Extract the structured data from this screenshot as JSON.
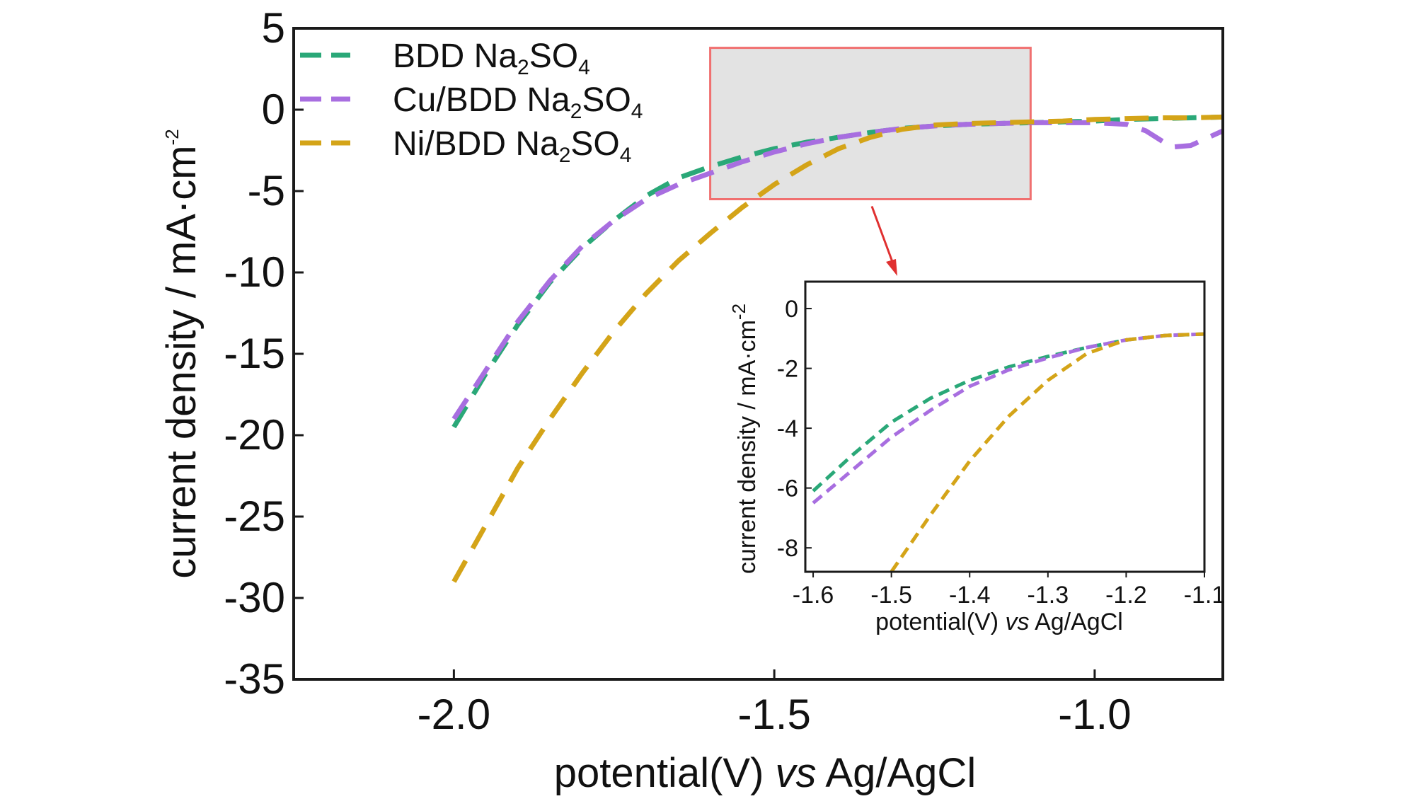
{
  "chart_data": {
    "type": "line",
    "xlabel": {
      "prefix": "potential(V) ",
      "italic": "vs",
      "suffix": " Ag/AgCl"
    },
    "ylabel": {
      "base": "current density / mA·cm",
      "superscript": "-2"
    },
    "xlim": [
      -2.25,
      -0.8
    ],
    "ylim": [
      -35,
      5
    ],
    "xticks": [
      -2.0,
      -1.5,
      -1.0
    ],
    "xtick_labels": [
      "-2.0",
      "-1.5",
      "-1.0"
    ],
    "yticks": [
      5,
      0,
      -5,
      -10,
      -15,
      -20,
      -25,
      -30,
      -35
    ],
    "ytick_labels": [
      "5",
      "0",
      "-5",
      "-10",
      "-15",
      "-20",
      "-25",
      "-30",
      "-35"
    ],
    "grid": false,
    "legend_position": "top-left",
    "series": [
      {
        "name": "BDD Na2SO4",
        "label": {
          "pre": "BDD Na",
          "sub1": "2",
          "mid": "SO",
          "sub2": "4"
        },
        "color": "#2aa878",
        "x": [
          -2.0,
          -1.95,
          -1.9,
          -1.85,
          -1.8,
          -1.75,
          -1.7,
          -1.65,
          -1.6,
          -1.55,
          -1.5,
          -1.45,
          -1.4,
          -1.35,
          -1.3,
          -1.25,
          -1.2,
          -1.15,
          -1.1,
          -1.05,
          -1.0,
          -0.95,
          -0.9,
          -0.85,
          -0.8
        ],
        "y": [
          -19.5,
          -16.2,
          -13.2,
          -10.6,
          -8.5,
          -6.8,
          -5.3,
          -4.2,
          -3.5,
          -2.9,
          -2.4,
          -2.0,
          -1.7,
          -1.4,
          -1.15,
          -1.0,
          -0.9,
          -0.85,
          -0.8,
          -0.75,
          -0.7,
          -0.6,
          -0.55,
          -0.5,
          -0.45
        ]
      },
      {
        "name": "Cu/BDD Na2SO4",
        "label": {
          "pre": "Cu/BDD Na",
          "sub1": "2",
          "mid": "SO",
          "sub2": "4"
        },
        "color": "#a86ee0",
        "x": [
          -2.0,
          -1.95,
          -1.9,
          -1.85,
          -1.8,
          -1.75,
          -1.7,
          -1.65,
          -1.6,
          -1.55,
          -1.5,
          -1.45,
          -1.4,
          -1.35,
          -1.3,
          -1.25,
          -1.2,
          -1.15,
          -1.1,
          -1.05,
          -1.0,
          -0.95,
          -0.92,
          -0.88,
          -0.85,
          -0.8
        ],
        "y": [
          -19.0,
          -16.0,
          -13.0,
          -10.5,
          -8.4,
          -6.8,
          -5.5,
          -4.6,
          -3.9,
          -3.2,
          -2.6,
          -2.1,
          -1.7,
          -1.4,
          -1.15,
          -1.0,
          -0.9,
          -0.85,
          -0.8,
          -0.8,
          -0.8,
          -0.9,
          -1.3,
          -2.3,
          -2.2,
          -1.3
        ]
      },
      {
        "name": "Ni/BDD Na2SO4",
        "label": {
          "pre": "Ni/BDD Na",
          "sub1": "2",
          "mid": "SO",
          "sub2": "4"
        },
        "color": "#d4a418",
        "x": [
          -2.0,
          -1.95,
          -1.9,
          -1.85,
          -1.8,
          -1.75,
          -1.7,
          -1.65,
          -1.6,
          -1.55,
          -1.5,
          -1.45,
          -1.4,
          -1.35,
          -1.3,
          -1.25,
          -1.2,
          -1.15,
          -1.1,
          -1.05,
          -1.0,
          -0.95,
          -0.9,
          -0.85,
          -0.8
        ],
        "y": [
          -29.0,
          -25.5,
          -22.0,
          -19.0,
          -16.2,
          -13.6,
          -11.3,
          -9.3,
          -7.6,
          -6.0,
          -4.6,
          -3.4,
          -2.4,
          -1.7,
          -1.2,
          -0.95,
          -0.85,
          -0.8,
          -0.75,
          -0.7,
          -0.6,
          -0.55,
          -0.5,
          -0.5,
          -0.45
        ]
      }
    ],
    "highlight_box": {
      "x": [
        -1.6,
        -1.1
      ],
      "y": [
        -5.5,
        3.8
      ],
      "fill": "#e3e3e3",
      "edge": "#f07070"
    },
    "arrow_color": "#e03030",
    "inset": {
      "xlim": [
        -1.61,
        -1.1
      ],
      "ylim": [
        -8.8,
        0.9
      ],
      "xticks": [
        -1.6,
        -1.5,
        -1.4,
        -1.3,
        -1.2,
        -1.1
      ],
      "xtick_labels": [
        "-1.6",
        "-1.5",
        "-1.4",
        "-1.3",
        "-1.2",
        "-1.1"
      ],
      "yticks": [
        0,
        -2,
        -4,
        -6,
        -8
      ],
      "ytick_labels": [
        "0",
        "-2",
        "-4",
        "-6",
        "-8"
      ],
      "xlabel": {
        "prefix": "potential(V) ",
        "italic": "vs",
        "suffix": " Ag/AgCl"
      },
      "ylabel": {
        "base": "current density / mA·cm",
        "superscript": "-2"
      },
      "series": [
        {
          "name": "BDD Na2SO4",
          "x": [
            -1.6,
            -1.55,
            -1.5,
            -1.45,
            -1.4,
            -1.35,
            -1.3,
            -1.25,
            -1.2,
            -1.15,
            -1.1
          ],
          "y": [
            -6.1,
            -4.9,
            -3.8,
            -3.0,
            -2.4,
            -1.95,
            -1.6,
            -1.3,
            -1.05,
            -0.9,
            -0.85
          ]
        },
        {
          "name": "Cu/BDD Na2SO4",
          "x": [
            -1.6,
            -1.55,
            -1.5,
            -1.45,
            -1.4,
            -1.35,
            -1.3,
            -1.25,
            -1.2,
            -1.15,
            -1.1
          ],
          "y": [
            -6.5,
            -5.4,
            -4.3,
            -3.4,
            -2.6,
            -2.05,
            -1.65,
            -1.3,
            -1.05,
            -0.9,
            -0.85
          ]
        },
        {
          "name": "Ni/BDD Na2SO4",
          "x": [
            -1.5,
            -1.45,
            -1.4,
            -1.35,
            -1.3,
            -1.25,
            -1.2,
            -1.15,
            -1.1
          ],
          "y": [
            -8.8,
            -6.9,
            -5.1,
            -3.6,
            -2.4,
            -1.5,
            -1.05,
            -0.9,
            -0.85
          ]
        }
      ]
    }
  }
}
